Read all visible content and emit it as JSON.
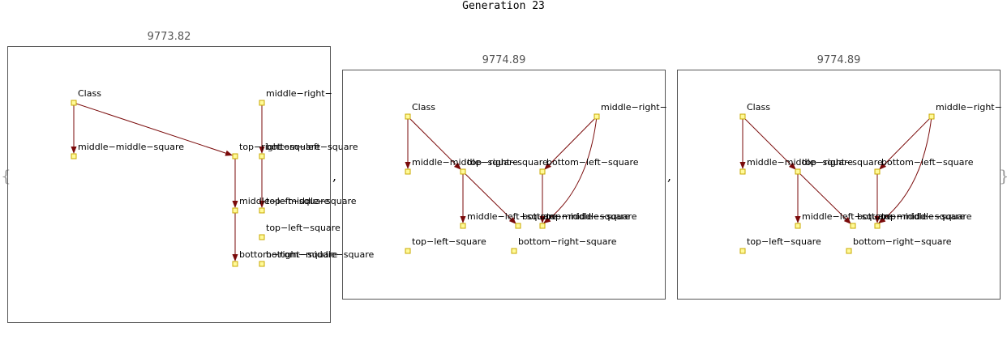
{
  "header": {
    "title": "Generation 23"
  },
  "brace_open": "{",
  "brace_close": "}",
  "separator": ",",
  "colors": {
    "edge": "#7a0a0a",
    "node_fill": "#fffa99",
    "node_stroke": "#c8a800",
    "frame": "#555555"
  },
  "panels": [
    {
      "score": "9773.82",
      "nodes": [
        {
          "id": "n1",
          "label": "Class"
        },
        {
          "id": "n2",
          "label": "middle−right−"
        },
        {
          "id": "n3",
          "label": "middle−middle−square"
        },
        {
          "id": "n4",
          "label": "top−right−square"
        },
        {
          "id": "n5",
          "label": "bottom−left−square"
        },
        {
          "id": "n6",
          "label": "middle−left−square"
        },
        {
          "id": "n7",
          "label": "top−middle−square"
        },
        {
          "id": "n8",
          "label": "top−left−square"
        },
        {
          "id": "n9",
          "label": "bottom−right−square"
        },
        {
          "id": "n10",
          "label": "bottom−middle−square"
        }
      ],
      "edges": [
        [
          "n1",
          "n3"
        ],
        [
          "n1",
          "n4"
        ],
        [
          "n2",
          "n5"
        ],
        [
          "n4",
          "n6"
        ],
        [
          "n5",
          "n7"
        ],
        [
          "n6",
          "n9"
        ]
      ]
    },
    {
      "score": "9774.89",
      "nodes": [
        {
          "id": "m1",
          "label": "Class"
        },
        {
          "id": "m2",
          "label": "middle−right−"
        },
        {
          "id": "m3",
          "label": "middle−middle−square"
        },
        {
          "id": "m4",
          "label": "top−right−square"
        },
        {
          "id": "m5",
          "label": "bottom−left−square"
        },
        {
          "id": "m6",
          "label": "middle−left−square"
        },
        {
          "id": "m7",
          "label": "bottom−middle−square"
        },
        {
          "id": "m8",
          "label": "top−middle−square"
        },
        {
          "id": "m9",
          "label": "top−left−square"
        },
        {
          "id": "m10",
          "label": "bottom−right−square"
        }
      ],
      "edges": [
        [
          "m1",
          "m3"
        ],
        [
          "m1",
          "m4"
        ],
        [
          "m2",
          "m5"
        ],
        [
          "m2",
          "m8"
        ],
        [
          "m4",
          "m6"
        ],
        [
          "m4",
          "m7"
        ],
        [
          "m5",
          "m8"
        ]
      ]
    },
    {
      "score": "9774.89",
      "nodes": [
        {
          "id": "k1",
          "label": "Class"
        },
        {
          "id": "k2",
          "label": "middle−right−"
        },
        {
          "id": "k3",
          "label": "middle−middle−square"
        },
        {
          "id": "k4",
          "label": "top−right−square"
        },
        {
          "id": "k5",
          "label": "bottom−left−square"
        },
        {
          "id": "k6",
          "label": "middle−left−square"
        },
        {
          "id": "k7",
          "label": "bottom−middle−square"
        },
        {
          "id": "k8",
          "label": "top−middle−square"
        },
        {
          "id": "k9",
          "label": "top−left−square"
        },
        {
          "id": "k10",
          "label": "bottom−right−square"
        }
      ],
      "edges": [
        [
          "k1",
          "k3"
        ],
        [
          "k1",
          "k4"
        ],
        [
          "k2",
          "k5"
        ],
        [
          "k2",
          "k8"
        ],
        [
          "k4",
          "k6"
        ],
        [
          "k4",
          "k7"
        ],
        [
          "k5",
          "k8"
        ]
      ]
    }
  ]
}
